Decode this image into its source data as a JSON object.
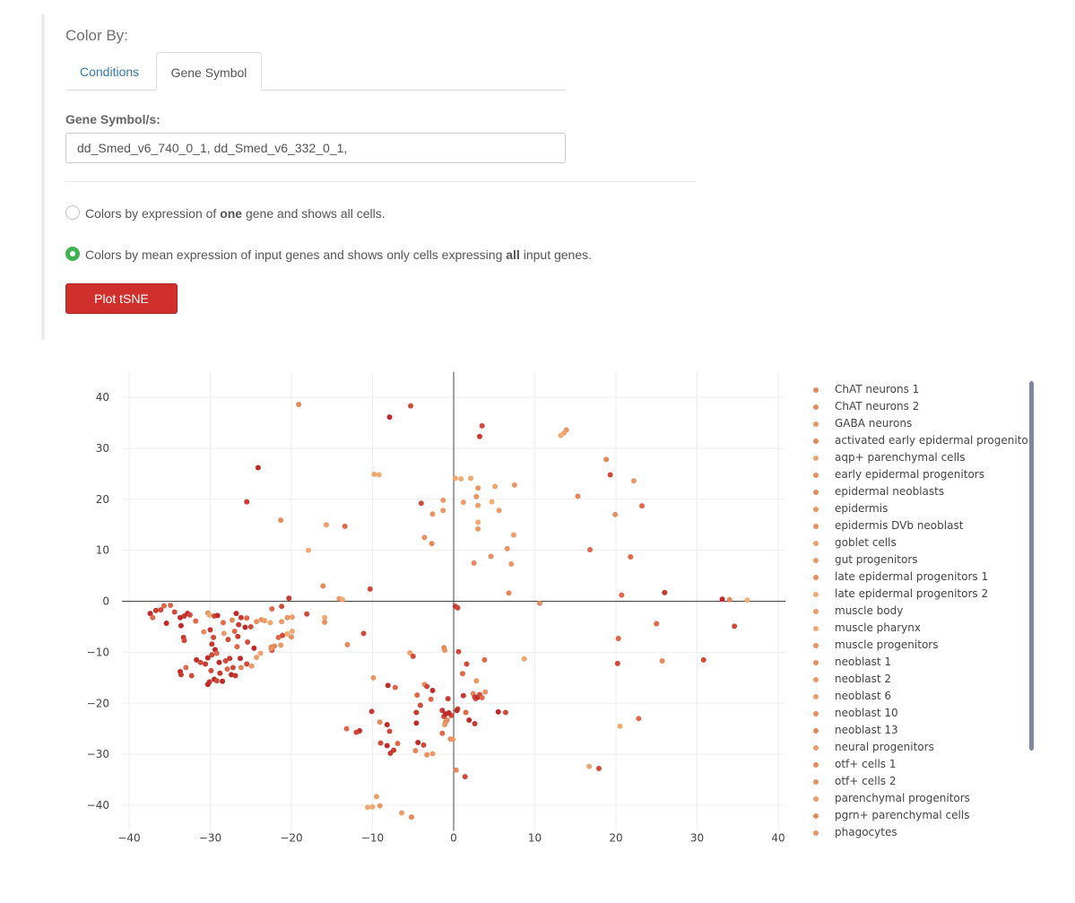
{
  "form": {
    "color_by_label": "Color By:",
    "tabs": [
      {
        "label": "Conditions",
        "active": false
      },
      {
        "label": "Gene Symbol",
        "active": true
      }
    ],
    "gene_symbol_label": "Gene Symbol/s:",
    "gene_input_value": "dd_Smed_v6_740_0_1, dd_Smed_v6_332_0_1,",
    "options": [
      {
        "before": "Colors by expression of ",
        "strong": "one",
        "after": " gene and shows all cells.",
        "selected": false
      },
      {
        "before": "Colors by mean expression of input genes and shows only cells expressing ",
        "strong": "all",
        "after": " input genes.",
        "selected": true
      }
    ],
    "plot_button": "Plot tSNE",
    "accent_color": "#d0302b",
    "radio_color": "#3fb34f"
  },
  "chart_data": {
    "type": "scatter",
    "xlim": [
      -40,
      40
    ],
    "ylim": [
      -45,
      45
    ],
    "x_ticks": [
      -40,
      -30,
      -20,
      -10,
      0,
      10,
      20,
      30,
      40
    ],
    "y_ticks": [
      40,
      30,
      20,
      10,
      0,
      -10,
      -20,
      -30,
      -40
    ],
    "grid": true,
    "legend_placement": "right",
    "legend": [
      {
        "name": "ChAT neurons 1",
        "color": "#e8875a"
      },
      {
        "name": "ChAT neurons 2",
        "color": "#e58a5e"
      },
      {
        "name": "GABA neurons",
        "color": "#ea9664"
      },
      {
        "name": "activated early epidermal progenitors",
        "color": "#e48659"
      },
      {
        "name": "aqp+ parenchymal cells",
        "color": "#f0a56e"
      },
      {
        "name": "early epidermal progenitors",
        "color": "#e98f60"
      },
      {
        "name": "epidermal neoblasts",
        "color": "#e68a5c"
      },
      {
        "name": "epidermis",
        "color": "#eb9565"
      },
      {
        "name": "epidermis DVb neoblast",
        "color": "#e9905f"
      },
      {
        "name": "goblet cells",
        "color": "#ef9f6a"
      },
      {
        "name": "gut progenitors",
        "color": "#ec9866"
      },
      {
        "name": "late epidermal progenitors 1",
        "color": "#e98d5e"
      },
      {
        "name": "late epidermal progenitors 2",
        "color": "#f3ab74"
      },
      {
        "name": "muscle body",
        "color": "#ee9c69"
      },
      {
        "name": "muscle pharynx",
        "color": "#f2a971"
      },
      {
        "name": "muscle progenitors",
        "color": "#ea9262"
      },
      {
        "name": "neoblast 1",
        "color": "#e68c5d"
      },
      {
        "name": "neoblast 2",
        "color": "#ec9867"
      },
      {
        "name": "neoblast 6",
        "color": "#ee9d6a"
      },
      {
        "name": "neoblast 10",
        "color": "#e98e5f"
      },
      {
        "name": "neoblast 13",
        "color": "#e58857"
      },
      {
        "name": "neural progenitors",
        "color": "#ec9a67"
      },
      {
        "name": "otf+ cells 1",
        "color": "#e98b5c"
      },
      {
        "name": "otf+ cells 2",
        "color": "#ea9363"
      },
      {
        "name": "parenchymal progenitors",
        "color": "#ee9c68"
      },
      {
        "name": "pgrn+ parenchymal cells",
        "color": "#e78a5b"
      },
      {
        "name": "phagocytes",
        "color": "#eb9564"
      }
    ],
    "points": [
      [
        -19.1,
        38.6,
        "#e58a5e"
      ],
      [
        -5.3,
        38.3,
        "#d04a3a"
      ],
      [
        -7.9,
        36.1,
        "#c22a2a"
      ],
      [
        3.5,
        34.4,
        "#d04a3a"
      ],
      [
        3.2,
        32.3,
        "#c8392f"
      ],
      [
        13.9,
        33.6,
        "#ea9664"
      ],
      [
        13.6,
        33.0,
        "#f0a56e"
      ],
      [
        13.2,
        32.5,
        "#f3ab74"
      ],
      [
        -24.1,
        26.2,
        "#c22a2a"
      ],
      [
        18.8,
        27.8,
        "#e8875a"
      ],
      [
        19.3,
        24.8,
        "#d04a3a"
      ],
      [
        22.2,
        23.6,
        "#ec9866"
      ],
      [
        -25.5,
        19.5,
        "#c8392f"
      ],
      [
        -21.3,
        15.9,
        "#e58a5e"
      ],
      [
        -9.8,
        24.9,
        "#f2a971"
      ],
      [
        -9.2,
        24.8,
        "#f3ab74"
      ],
      [
        0.2,
        24.1,
        "#f0a56e"
      ],
      [
        0.9,
        24.0,
        "#f3ab74"
      ],
      [
        2.1,
        24.1,
        "#f2a971"
      ],
      [
        7.5,
        22.8,
        "#ec9866"
      ],
      [
        3.0,
        22.2,
        "#ea9664"
      ],
      [
        5.1,
        22.5,
        "#f0a56e"
      ],
      [
        -4.0,
        19.2,
        "#d04a3a"
      ],
      [
        -1.3,
        19.8,
        "#ec9866"
      ],
      [
        1.2,
        19.4,
        "#ee9c69"
      ],
      [
        2.8,
        20.5,
        "#eb9565"
      ],
      [
        3.0,
        18.8,
        "#ee9d6a"
      ],
      [
        4.7,
        19.5,
        "#f3ab74"
      ],
      [
        15.3,
        20.6,
        "#e48659"
      ],
      [
        19.9,
        17.0,
        "#e98f60"
      ],
      [
        23.2,
        18.7,
        "#e0674a"
      ],
      [
        -1.3,
        17.8,
        "#ec9866"
      ],
      [
        -2.6,
        17.1,
        "#ea9262"
      ],
      [
        5.6,
        17.8,
        "#ec9a67"
      ],
      [
        -15.7,
        15.0,
        "#ee9c68"
      ],
      [
        -13.4,
        14.7,
        "#e0674a"
      ],
      [
        3.0,
        15.5,
        "#f0a56e"
      ],
      [
        3.0,
        14.2,
        "#ec9866"
      ],
      [
        7.4,
        13.0,
        "#ee9c69"
      ],
      [
        -3.6,
        12.5,
        "#e98f60"
      ],
      [
        -2.7,
        11.3,
        "#e8875a"
      ],
      [
        -17.9,
        10.0,
        "#f2a971"
      ],
      [
        6.6,
        10.3,
        "#ea9262"
      ],
      [
        16.8,
        10.1,
        "#e0674a"
      ],
      [
        4.6,
        8.8,
        "#e98e5f"
      ],
      [
        21.8,
        8.7,
        "#e0674a"
      ],
      [
        2.5,
        7.5,
        "#e8875a"
      ],
      [
        7.1,
        7.3,
        "#eb9565"
      ],
      [
        -16.1,
        3.0,
        "#e58857"
      ],
      [
        -10.3,
        2.4,
        "#d04a3a"
      ],
      [
        -14.1,
        0.5,
        "#ec9866"
      ],
      [
        -13.7,
        0.3,
        "#f2a971"
      ],
      [
        -20.3,
        0.6,
        "#c8392f"
      ],
      [
        -21.2,
        -1.0,
        "#d04a3a"
      ],
      [
        -22.4,
        -1.5,
        "#e0674a"
      ],
      [
        6.8,
        1.6,
        "#e48659"
      ],
      [
        10.6,
        -0.4,
        "#e58a5e"
      ],
      [
        20.7,
        1.2,
        "#e0674a"
      ],
      [
        26.0,
        1.7,
        "#c8392f"
      ],
      [
        33.1,
        0.4,
        "#c22a2a"
      ],
      [
        34.0,
        0.3,
        "#e58a5e"
      ],
      [
        36.2,
        0.2,
        "#f3ab74"
      ],
      [
        0.2,
        -1.0,
        "#c8392f"
      ],
      [
        0.5,
        -1.3,
        "#d04a3a"
      ],
      [
        34.6,
        -4.9,
        "#d04a3a"
      ],
      [
        25.0,
        -4.4,
        "#e0674a"
      ],
      [
        -37.4,
        -2.4,
        "#c22a2a"
      ],
      [
        -37.1,
        -3.2,
        "#e0674a"
      ],
      [
        -36.7,
        -1.8,
        "#c8392f"
      ],
      [
        -36.1,
        -1.7,
        "#d04a3a"
      ],
      [
        -35.7,
        -0.9,
        "#e0674a"
      ],
      [
        -35.4,
        -4.3,
        "#c22a2a"
      ],
      [
        -34.9,
        -0.8,
        "#e0674a"
      ],
      [
        -34.4,
        -2.1,
        "#d04a3a"
      ],
      [
        -33.7,
        -3.2,
        "#c22a2a"
      ],
      [
        -33.2,
        -2.9,
        "#c8392f"
      ],
      [
        -32.8,
        -2.4,
        "#c22a2a"
      ],
      [
        -32.5,
        -2.7,
        "#d04a3a"
      ],
      [
        -31.8,
        -3.9,
        "#e0674a"
      ],
      [
        -33.6,
        -4.8,
        "#c22a2a"
      ],
      [
        -33.3,
        -7.1,
        "#c8392f"
      ],
      [
        -33.2,
        -7.7,
        "#d04a3a"
      ],
      [
        -30.3,
        -2.3,
        "#ea9262"
      ],
      [
        -30.1,
        -2.7,
        "#f0a56e"
      ],
      [
        -29.5,
        -2.9,
        "#d04a3a"
      ],
      [
        -29.1,
        -2.8,
        "#c22a2a"
      ],
      [
        -30.0,
        -5.6,
        "#c8392f"
      ],
      [
        -28.4,
        -4.2,
        "#e0674a"
      ],
      [
        -27.3,
        -3.7,
        "#e48659"
      ],
      [
        -26.8,
        -2.4,
        "#c22a2a"
      ],
      [
        -26.2,
        -3.2,
        "#c8392f"
      ],
      [
        -25.5,
        -3.3,
        "#e0674a"
      ],
      [
        -25.0,
        -5.0,
        "#d04a3a"
      ],
      [
        -25.7,
        -5.1,
        "#c22a2a"
      ],
      [
        -26.5,
        -4.6,
        "#c8392f"
      ],
      [
        -27.0,
        -5.9,
        "#e0674a"
      ],
      [
        -28.3,
        -6.3,
        "#ec9866"
      ],
      [
        -30.8,
        -6.0,
        "#e58a5e"
      ],
      [
        -29.6,
        -7.1,
        "#d04a3a"
      ],
      [
        -29.8,
        -8.4,
        "#c8392f"
      ],
      [
        -29.4,
        -9.5,
        "#c22a2a"
      ],
      [
        -27.8,
        -7.5,
        "#d04a3a"
      ],
      [
        -26.6,
        -6.9,
        "#c8392f"
      ],
      [
        -26.7,
        -8.9,
        "#e0674a"
      ],
      [
        -25.4,
        -8.0,
        "#d04a3a"
      ],
      [
        -24.6,
        -9.2,
        "#c22a2a"
      ],
      [
        -24.3,
        -4.0,
        "#e98f60"
      ],
      [
        -23.7,
        -3.6,
        "#eb9565"
      ],
      [
        -23.3,
        -3.8,
        "#ee9c69"
      ],
      [
        -22.6,
        -4.2,
        "#f0a56e"
      ],
      [
        -21.2,
        -4.0,
        "#ec9866"
      ],
      [
        -20.5,
        -3.2,
        "#ea9664"
      ],
      [
        -19.9,
        -3.1,
        "#ee9d6a"
      ],
      [
        -21.6,
        -7.1,
        "#e0674a"
      ],
      [
        -21.1,
        -6.7,
        "#d04a3a"
      ],
      [
        -20.5,
        -6.4,
        "#f3ab74"
      ],
      [
        -19.9,
        -5.9,
        "#f0a56e"
      ],
      [
        -20.0,
        -7.0,
        "#e98e5f"
      ],
      [
        -21.3,
        -8.6,
        "#ec9866"
      ],
      [
        -22.1,
        -8.8,
        "#e48659"
      ],
      [
        -22.4,
        -9.6,
        "#d04a3a"
      ],
      [
        -22.5,
        -9.0,
        "#e8875a"
      ],
      [
        -18.1,
        -2.5,
        "#d04a3a"
      ],
      [
        -15.9,
        -3.2,
        "#f2a971"
      ],
      [
        -15.9,
        -4.1,
        "#e98f60"
      ],
      [
        -13.1,
        -8.5,
        "#e58a5e"
      ],
      [
        -11.1,
        -6.3,
        "#d04a3a"
      ],
      [
        -33.7,
        -13.8,
        "#c22a2a"
      ],
      [
        -33.6,
        -14.4,
        "#c8392f"
      ],
      [
        -33.0,
        -13.0,
        "#e0674a"
      ],
      [
        -32.3,
        -14.6,
        "#d04a3a"
      ],
      [
        -31.7,
        -11.5,
        "#c22a2a"
      ],
      [
        -31.2,
        -12.0,
        "#d04a3a"
      ],
      [
        -30.6,
        -12.3,
        "#c8392f"
      ],
      [
        -30.3,
        -11.1,
        "#c22a2a"
      ],
      [
        -29.9,
        -13.6,
        "#d04a3a"
      ],
      [
        -29.5,
        -15.3,
        "#c22a2a"
      ],
      [
        -30.1,
        -15.8,
        "#c8392f"
      ],
      [
        -30.3,
        -16.3,
        "#c22a2a"
      ],
      [
        -29.2,
        -15.6,
        "#d04a3a"
      ],
      [
        -28.8,
        -14.1,
        "#c8392f"
      ],
      [
        -28.5,
        -15.7,
        "#c22a2a"
      ],
      [
        -27.9,
        -13.3,
        "#e0674a"
      ],
      [
        -27.4,
        -14.4,
        "#c22a2a"
      ],
      [
        -27.2,
        -13.0,
        "#d04a3a"
      ],
      [
        -26.9,
        -14.6,
        "#c8392f"
      ],
      [
        -28.9,
        -12.0,
        "#c22a2a"
      ],
      [
        -28.1,
        -11.7,
        "#d04a3a"
      ],
      [
        -27.6,
        -11.2,
        "#c8392f"
      ],
      [
        -29.8,
        -10.5,
        "#d04a3a"
      ],
      [
        -29.2,
        -10.2,
        "#e0674a"
      ],
      [
        -26.3,
        -11.2,
        "#c22a2a"
      ],
      [
        -25.5,
        -12.3,
        "#d04a3a"
      ],
      [
        -26.2,
        -13.0,
        "#e48659"
      ],
      [
        -24.9,
        -12.7,
        "#ec9866"
      ],
      [
        -24.3,
        -11.0,
        "#ee9c69"
      ],
      [
        -23.8,
        -10.2,
        "#f0a56e"
      ],
      [
        -22.5,
        -9.3,
        "#ea9262"
      ],
      [
        -9.9,
        -15.0,
        "#ea9664"
      ],
      [
        -11.6,
        -25.4,
        "#c22a2a"
      ],
      [
        -12.0,
        -25.7,
        "#d04a3a"
      ],
      [
        -13.2,
        -25.0,
        "#e0674a"
      ],
      [
        -10.1,
        -21.6,
        "#c8392f"
      ],
      [
        -9.1,
        -23.7,
        "#e8875a"
      ],
      [
        -8.2,
        -24.2,
        "#c22a2a"
      ],
      [
        -7.9,
        -25.5,
        "#d04a3a"
      ],
      [
        -8.1,
        -16.5,
        "#c22a2a"
      ],
      [
        -7.2,
        -16.9,
        "#e0674a"
      ],
      [
        -7.8,
        -29.8,
        "#c8392f"
      ],
      [
        -8.2,
        -28.3,
        "#c22a2a"
      ],
      [
        -9.0,
        -27.8,
        "#d04a3a"
      ],
      [
        -6.9,
        -27.9,
        "#e0674a"
      ],
      [
        -7.4,
        -29.2,
        "#c8392f"
      ],
      [
        -5.4,
        -10.1,
        "#f0a56e"
      ],
      [
        -5.0,
        -10.8,
        "#d04a3a"
      ],
      [
        -4.7,
        -29.3,
        "#e48659"
      ],
      [
        -4.4,
        -27.7,
        "#c22a2a"
      ],
      [
        -3.7,
        -28.2,
        "#d04a3a"
      ],
      [
        -3.3,
        -30.1,
        "#e98f60"
      ],
      [
        -2.6,
        -29.9,
        "#ec9866"
      ],
      [
        -4.5,
        -18.4,
        "#e0674a"
      ],
      [
        -4.1,
        -20.4,
        "#d04a3a"
      ],
      [
        -4.6,
        -21.8,
        "#c8392f"
      ],
      [
        -4.6,
        -23.9,
        "#c22a2a"
      ],
      [
        -3.6,
        -16.3,
        "#e98f60"
      ],
      [
        -3.3,
        -16.7,
        "#d04a3a"
      ],
      [
        -2.8,
        -19.2,
        "#e0674a"
      ],
      [
        -2.6,
        -17.5,
        "#c22a2a"
      ],
      [
        -1.4,
        -21.4,
        "#c8392f"
      ],
      [
        -1.2,
        -22.6,
        "#d04a3a"
      ],
      [
        -1.0,
        -23.7,
        "#e48659"
      ],
      [
        -0.8,
        -23.3,
        "#e58a5e"
      ],
      [
        -1.1,
        -24.2,
        "#ec9866"
      ],
      [
        -1.4,
        -25.9,
        "#e0674a"
      ],
      [
        -1.0,
        -22.1,
        "#c22a2a"
      ],
      [
        -0.7,
        -19.1,
        "#c8392f"
      ],
      [
        -0.3,
        -22.4,
        "#d04a3a"
      ],
      [
        -0.6,
        -21.9,
        "#c22a2a"
      ],
      [
        -0.4,
        -27.0,
        "#e98e5f"
      ],
      [
        -0.1,
        -27.1,
        "#ee9c69"
      ],
      [
        -1.2,
        -9.1,
        "#e8875a"
      ],
      [
        -1.1,
        -9.6,
        "#ea9262"
      ],
      [
        0.5,
        -21.1,
        "#d04a3a"
      ],
      [
        0.4,
        -21.4,
        "#c22a2a"
      ],
      [
        0.6,
        -9.9,
        "#d04a3a"
      ],
      [
        1.1,
        -14.2,
        "#e0674a"
      ],
      [
        1.2,
        -18.5,
        "#c8392f"
      ],
      [
        1.5,
        -21.8,
        "#e0674a"
      ],
      [
        1.6,
        -12.3,
        "#d04a3a"
      ],
      [
        1.9,
        -23.3,
        "#c22a2a"
      ],
      [
        2.4,
        -18.1,
        "#e48659"
      ],
      [
        2.6,
        -18.8,
        "#c8392f"
      ],
      [
        2.7,
        -19.1,
        "#d04a3a"
      ],
      [
        3.0,
        -18.8,
        "#c22a2a"
      ],
      [
        2.6,
        -24.0,
        "#c8392f"
      ],
      [
        2.8,
        -15.6,
        "#ec9866"
      ],
      [
        3.2,
        -18.3,
        "#d04a3a"
      ],
      [
        3.5,
        -18.9,
        "#e0674a"
      ],
      [
        3.9,
        -17.8,
        "#ea9262"
      ],
      [
        3.8,
        -11.5,
        "#e0674a"
      ],
      [
        5.5,
        -21.7,
        "#c22a2a"
      ],
      [
        6.4,
        -21.8,
        "#d04a3a"
      ],
      [
        8.7,
        -11.3,
        "#f0a56e"
      ],
      [
        0.3,
        -33.1,
        "#e58a5e"
      ],
      [
        1.4,
        -34.4,
        "#d04a3a"
      ],
      [
        -10.0,
        -40.3,
        "#f3ab74"
      ],
      [
        -10.6,
        -40.4,
        "#f2a971"
      ],
      [
        -9.5,
        -38.3,
        "#ee9d6a"
      ],
      [
        -9.1,
        -40.1,
        "#ea9664"
      ],
      [
        -6.4,
        -41.5,
        "#ee9c69"
      ],
      [
        -5.2,
        -42.3,
        "#e8875a"
      ],
      [
        16.7,
        -32.4,
        "#f0a56e"
      ],
      [
        17.9,
        -32.8,
        "#d04a3a"
      ],
      [
        20.5,
        -24.5,
        "#f3ab74"
      ],
      [
        22.8,
        -23.0,
        "#e0674a"
      ],
      [
        20.3,
        -7.3,
        "#e0674a"
      ],
      [
        20.2,
        -12.2,
        "#d04a3a"
      ],
      [
        25.7,
        -11.7,
        "#e58a5e"
      ],
      [
        30.8,
        -11.5,
        "#d04a3a"
      ]
    ]
  }
}
